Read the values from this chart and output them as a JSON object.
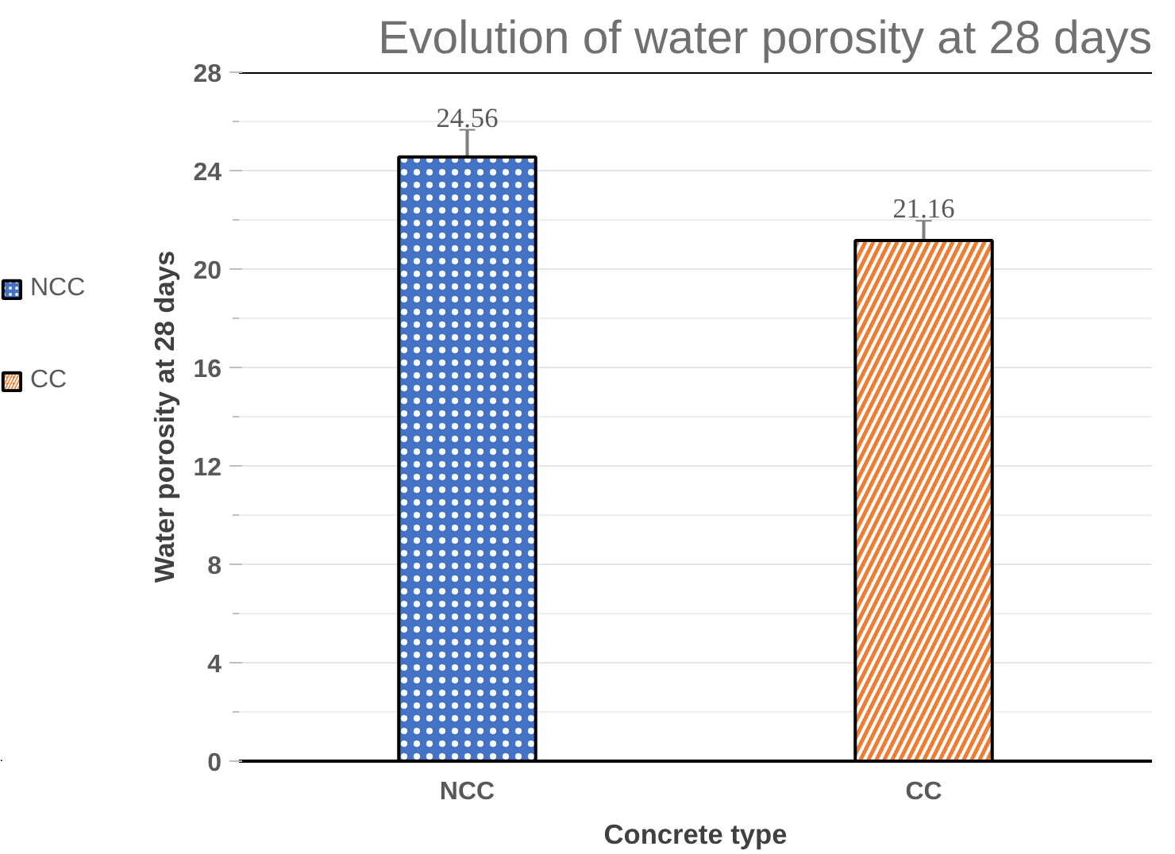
{
  "chart_data": {
    "type": "bar",
    "title": "Evolution of water porosity at 28 days",
    "xlabel": "Concrete type",
    "ylabel": "Water porosity at 28 days",
    "categories": [
      "NCC",
      "CC"
    ],
    "series": [
      {
        "name": "NCC",
        "color": "#4472c4",
        "values": [
          24.56,
          null
        ],
        "errors": [
          1.1,
          null
        ]
      },
      {
        "name": "CC",
        "color": "#ed7d31",
        "values": [
          null,
          21.16
        ],
        "errors": [
          null,
          0.8
        ]
      }
    ],
    "ylim": [
      0,
      28
    ],
    "yticks": [
      0,
      4,
      8,
      12,
      16,
      20,
      24,
      28
    ],
    "grid": "y",
    "legend": "left",
    "data_labels": true
  }
}
